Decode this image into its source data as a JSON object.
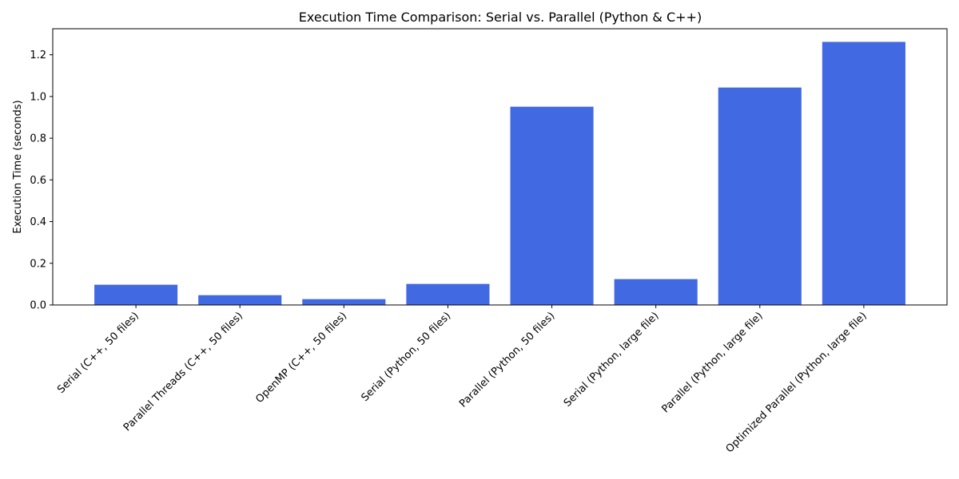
{
  "chart_data": {
    "type": "bar",
    "title": "Execution Time Comparison: Serial vs. Parallel (Python & C++)",
    "xlabel": "",
    "ylabel": "Execution Time (seconds)",
    "categories": [
      "Serial (C++, 50 files)",
      "Parallel Threads (C++, 50 files)",
      "OpenMP (C++, 50 files)",
      "Serial (Python, 50 files)",
      "Parallel (Python, 50 files)",
      "Serial (Python, large file)",
      "Parallel (Python, large file)",
      "Optimized Parallel (Python, large file)"
    ],
    "values": [
      0.097,
      0.047,
      0.028,
      0.101,
      0.951,
      0.124,
      1.043,
      1.262
    ],
    "ylim": [
      0,
      1.325
    ],
    "yticks": [
      "0.0",
      "0.2",
      "0.4",
      "0.6",
      "0.8",
      "1.0",
      "1.2"
    ],
    "grid": false,
    "legend": "none",
    "bar_color": "#4169e1",
    "axis_color": "#000000"
  }
}
